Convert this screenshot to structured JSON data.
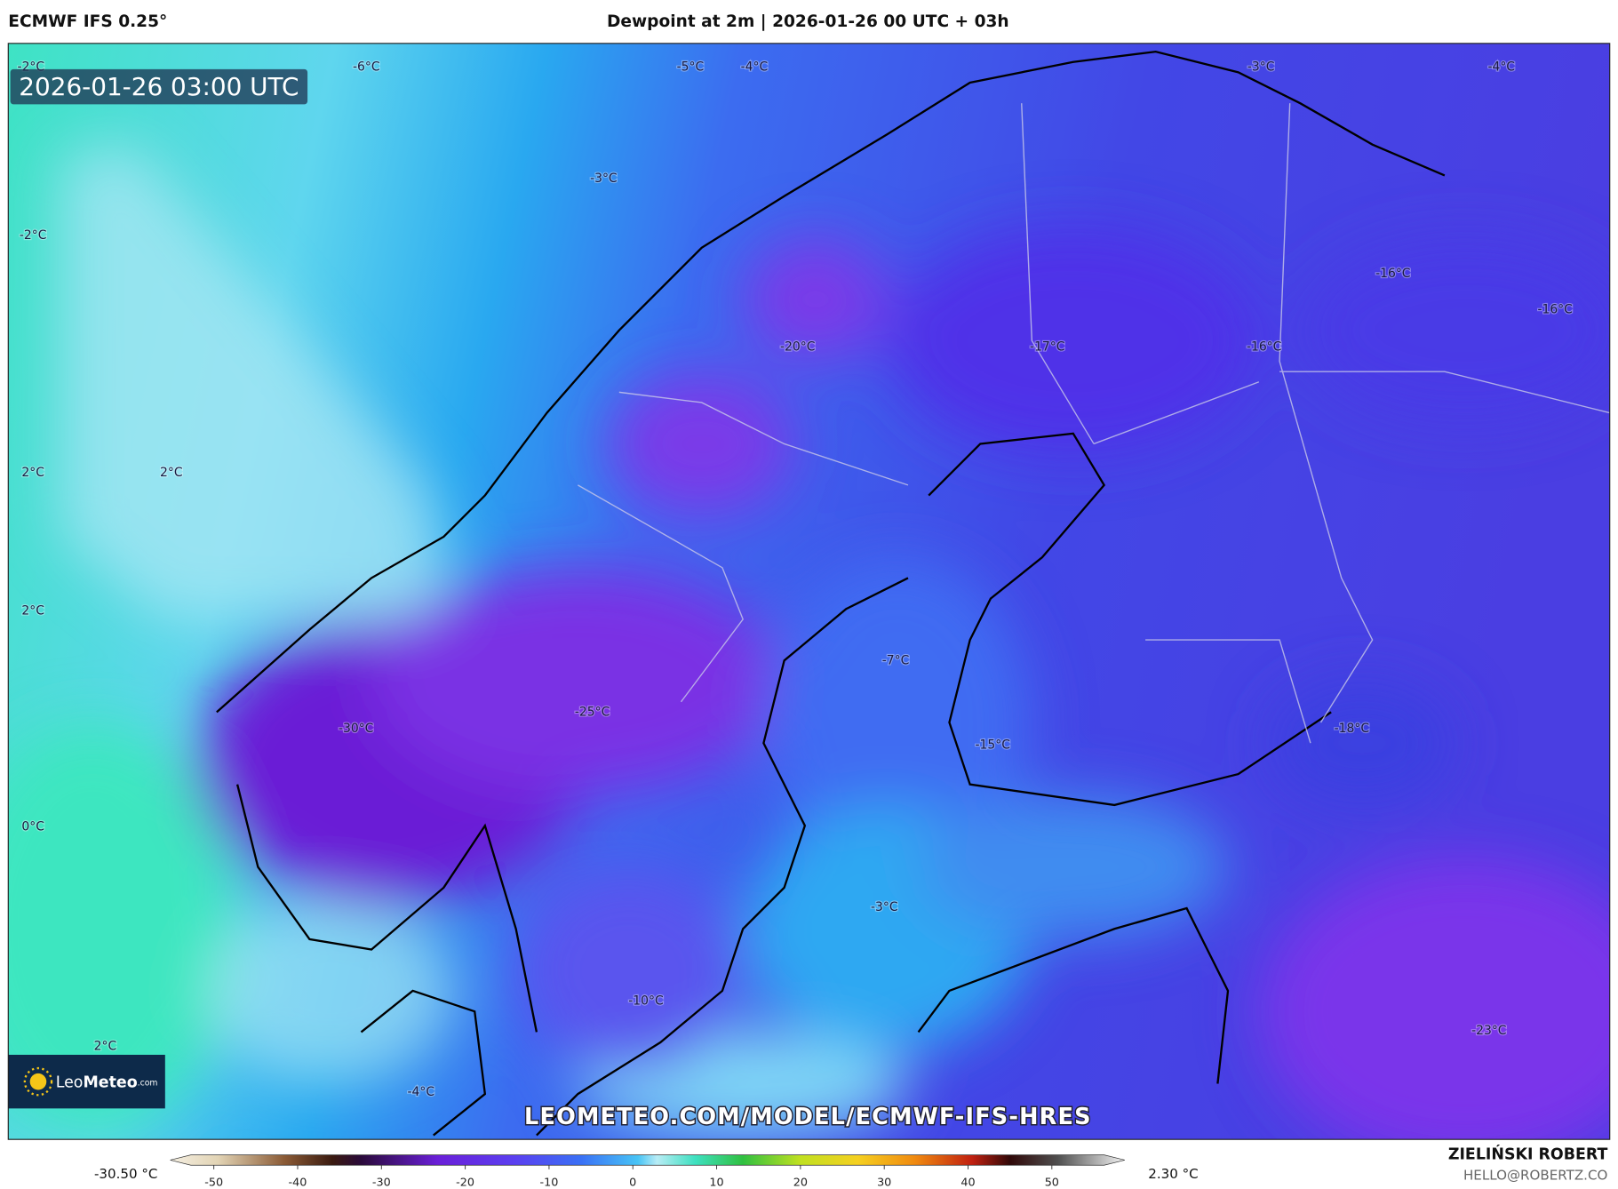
{
  "header": {
    "model": "ECMWF IFS 0.25°",
    "title": "Dewpoint at 2m | 2026-01-26 00 UTC + 03h"
  },
  "timestamp": "2026-01-26 03:00 UTC",
  "map_labels": [
    "-2°C",
    "-6°C",
    "-5°C",
    "-4°C",
    "-3°C",
    "-4°C",
    "-3°C",
    "-2°C",
    "-16°C",
    "-16°C",
    "-20°C",
    "-17°C",
    "-16°C",
    "2°C",
    "2°C",
    "2°C",
    "-7°C",
    "-25°C",
    "-30°C",
    "-18°C",
    "-15°C",
    "0°C",
    "-3°C",
    "-10°C",
    "-23°C",
    "2°C",
    "-4°C"
  ],
  "logo": {
    "name": "Leo",
    "name_bold": "Meteo",
    "suffix": ".com"
  },
  "watermark": "LEOMETEO.COM/MODEL/ECMWF-IFS-HRES",
  "colorbar": {
    "min_label": "-30.50 °C",
    "max_label": "2.30 °C",
    "range": [
      -55.2,
      58.7
    ],
    "ticks": [
      -50,
      -40,
      -30,
      -20,
      -10,
      0,
      10,
      20,
      30,
      40,
      50
    ]
  },
  "footer": {
    "author": "ZIELIŃSKI ROBERT",
    "email": "HELLO@ROBERTZ.CO"
  }
}
